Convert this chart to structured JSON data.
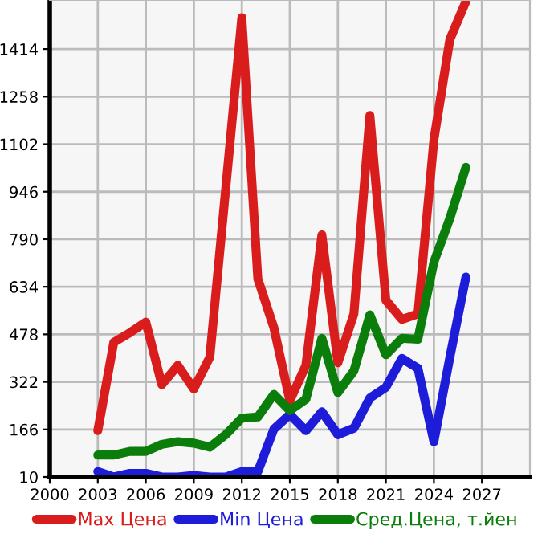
{
  "chart_data": {
    "type": "line",
    "x": [
      2003,
      2004,
      2005,
      2006,
      2007,
      2008,
      2009,
      2010,
      2011,
      2012,
      2013,
      2014,
      2015,
      2016,
      2017,
      2018,
      2019,
      2020,
      2021,
      2022,
      2023,
      2024,
      2025,
      2026
    ],
    "series": [
      {
        "name": "Max Цена",
        "color": "#d91c1c",
        "values": [
          162,
          452,
          483,
          518,
          313,
          376,
          299,
          403,
          960,
          1517,
          660,
          500,
          260,
          376,
          804,
          385,
          545,
          1196,
          590,
          527,
          545,
          1116,
          1446,
          1570
        ]
      },
      {
        "name": "Min Цена",
        "color": "#1c1cd9",
        "values": [
          28,
          10,
          22,
          22,
          10,
          10,
          15,
          10,
          10,
          28,
          28,
          167,
          215,
          162,
          224,
          149,
          170,
          269,
          304,
          399,
          367,
          126,
          403,
          666
        ]
      },
      {
        "name": "Сред.Цена, т.йен",
        "color": "#0a7d0a",
        "values": [
          82,
          82,
          94,
          94,
          117,
          126,
          121,
          108,
          149,
          203,
          207,
          281,
          228,
          265,
          465,
          287,
          358,
          542,
          411,
          465,
          462,
          715,
          859,
          1026
        ]
      }
    ],
    "xlim": [
      2000,
      2030
    ],
    "xticks": [
      2000,
      2003,
      2006,
      2009,
      2012,
      2015,
      2018,
      2021,
      2024,
      2027
    ],
    "ylim": [
      10,
      1575
    ],
    "yticks": [
      10,
      166,
      322,
      478,
      634,
      790,
      946,
      1102,
      1258,
      1414
    ],
    "grid": true,
    "legend": "bottom",
    "marker": "none",
    "line_style": "solid"
  }
}
